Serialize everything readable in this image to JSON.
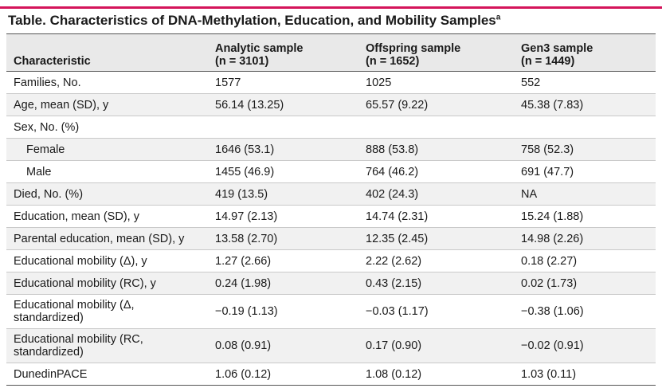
{
  "title": "Table. Characteristics of DNA-Methylation, Education, and Mobility Samples",
  "title_footnote_marker": "a",
  "accent_color": "#d4145a",
  "columns": [
    {
      "line1": "Characteristic",
      "line2": ""
    },
    {
      "line1": "Analytic sample",
      "line2": "(n = 3101)"
    },
    {
      "line1": "Offspring sample",
      "line2": "(n = 1652)"
    },
    {
      "line1": "Gen3 sample",
      "line2": "(n = 1449)"
    }
  ],
  "rows": [
    {
      "label": "Families, No.",
      "values": [
        "1577",
        "1025",
        "552"
      ]
    },
    {
      "label": "Age, mean (SD), y",
      "values": [
        "56.14 (13.25)",
        "65.57 (9.22)",
        "45.38 (7.83)"
      ]
    },
    {
      "label": "Sex, No. (%)",
      "values": [
        "",
        "",
        ""
      ]
    },
    {
      "label": "Female",
      "values": [
        "1646 (53.1)",
        "888 (53.8)",
        "758 (52.3)"
      ]
    },
    {
      "label": "Male",
      "values": [
        "1455 (46.9)",
        "764 (46.2)",
        "691 (47.7)"
      ]
    },
    {
      "label": "Died, No. (%)",
      "values": [
        "419 (13.5)",
        "402 (24.3)",
        "NA"
      ]
    },
    {
      "label": "Education, mean (SD), y",
      "values": [
        "14.97 (2.13)",
        "14.74 (2.31)",
        "15.24 (1.88)"
      ]
    },
    {
      "label": "Parental education, mean (SD), y",
      "values": [
        "13.58 (2.70)",
        "12.35 (2.45)",
        "14.98 (2.26)"
      ]
    },
    {
      "label": "Educational mobility (Δ), y",
      "values": [
        "1.27 (2.66)",
        "2.22 (2.62)",
        "0.18 (2.27)"
      ]
    },
    {
      "label": "Educational mobility (RC), y",
      "values": [
        "0.24 (1.98)",
        "0.43 (2.15)",
        "0.02 (1.73)"
      ]
    },
    {
      "label": "Educational mobility (Δ, standardized)",
      "values": [
        "−0.19 (1.13)",
        "−0.03 (1.17)",
        "−0.38 (1.06)"
      ]
    },
    {
      "label": "Educational mobility (RC, standardized)",
      "values": [
        "0.08 (0.91)",
        "0.17 (0.90)",
        "−0.02 (0.91)"
      ]
    },
    {
      "label": "DunedinPACE",
      "values": [
        "1.06 (0.12)",
        "1.08 (0.12)",
        "1.03 (0.11)"
      ]
    }
  ]
}
